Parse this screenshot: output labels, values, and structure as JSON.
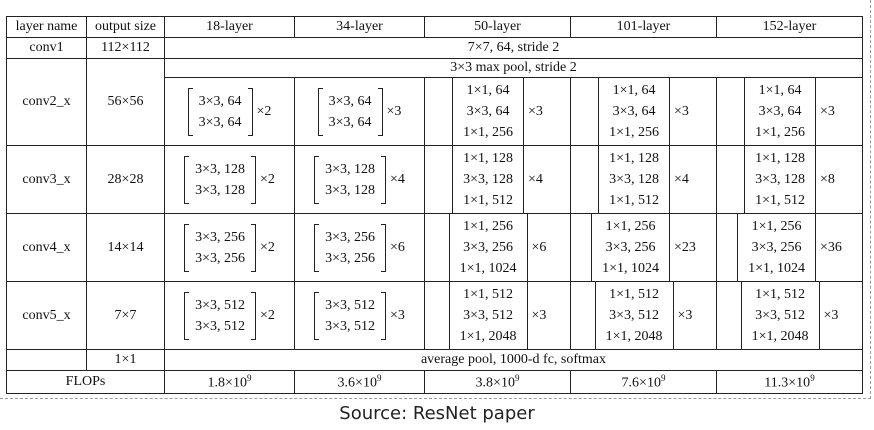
{
  "headers": [
    "layer name",
    "output size",
    "18-layer",
    "34-layer",
    "50-layer",
    "101-layer",
    "152-layer"
  ],
  "conv1": {
    "name": "conv1",
    "size": "112×112",
    "desc": "7×7, 64, stride 2"
  },
  "pool": {
    "desc": "3×3 max pool, stride 2"
  },
  "blocks": [
    {
      "name": "conv2_x",
      "size": "56×56",
      "cells": [
        {
          "lines": [
            "3×3, 64",
            "3×3, 64"
          ],
          "mult": "×2"
        },
        {
          "lines": [
            "3×3, 64",
            "3×3, 64"
          ],
          "mult": "×3"
        },
        {
          "lines": [
            "1×1, 64",
            "3×3, 64",
            "1×1, 256"
          ],
          "mult": "×3"
        },
        {
          "lines": [
            "1×1, 64",
            "3×3, 64",
            "1×1, 256"
          ],
          "mult": "×3"
        },
        {
          "lines": [
            "1×1, 64",
            "3×3, 64",
            "1×1, 256"
          ],
          "mult": "×3"
        }
      ]
    },
    {
      "name": "conv3_x",
      "size": "28×28",
      "cells": [
        {
          "lines": [
            "3×3, 128",
            "3×3, 128"
          ],
          "mult": "×2"
        },
        {
          "lines": [
            "3×3, 128",
            "3×3, 128"
          ],
          "mult": "×4"
        },
        {
          "lines": [
            "1×1, 128",
            "3×3, 128",
            "1×1, 512"
          ],
          "mult": "×4"
        },
        {
          "lines": [
            "1×1, 128",
            "3×3, 128",
            "1×1, 512"
          ],
          "mult": "×4"
        },
        {
          "lines": [
            "1×1, 128",
            "3×3, 128",
            "1×1, 512"
          ],
          "mult": "×8"
        }
      ]
    },
    {
      "name": "conv4_x",
      "size": "14×14",
      "cells": [
        {
          "lines": [
            "3×3, 256",
            "3×3, 256"
          ],
          "mult": "×2"
        },
        {
          "lines": [
            "3×3, 256",
            "3×3, 256"
          ],
          "mult": "×6"
        },
        {
          "lines": [
            "1×1, 256",
            "3×3, 256",
            "1×1, 1024"
          ],
          "mult": "×6"
        },
        {
          "lines": [
            "1×1, 256",
            "3×3, 256",
            "1×1, 1024"
          ],
          "mult": "×23"
        },
        {
          "lines": [
            "1×1, 256",
            "3×3, 256",
            "1×1, 1024"
          ],
          "mult": "×36"
        }
      ]
    },
    {
      "name": "conv5_x",
      "size": "7×7",
      "cells": [
        {
          "lines": [
            "3×3, 512",
            "3×3, 512"
          ],
          "mult": "×2"
        },
        {
          "lines": [
            "3×3, 512",
            "3×3, 512"
          ],
          "mult": "×3"
        },
        {
          "lines": [
            "1×1, 512",
            "3×3, 512",
            "1×1, 2048"
          ],
          "mult": "×3"
        },
        {
          "lines": [
            "1×1, 512",
            "3×3, 512",
            "1×1, 2048"
          ],
          "mult": "×3"
        },
        {
          "lines": [
            "1×1, 512",
            "3×3, 512",
            "1×1, 2048"
          ],
          "mult": "×3"
        }
      ]
    }
  ],
  "avg": {
    "size": "1×1",
    "desc": "average pool, 1000-d fc, softmax"
  },
  "flops": {
    "label": "FLOPs",
    "values": [
      {
        "base": "1.8×10",
        "exp": "9"
      },
      {
        "base": "3.6×10",
        "exp": "9"
      },
      {
        "base": "3.8×10",
        "exp": "9"
      },
      {
        "base": "7.6×10",
        "exp": "9"
      },
      {
        "base": "11.3×10",
        "exp": "9"
      }
    ]
  },
  "caption": "Source: ResNet paper"
}
